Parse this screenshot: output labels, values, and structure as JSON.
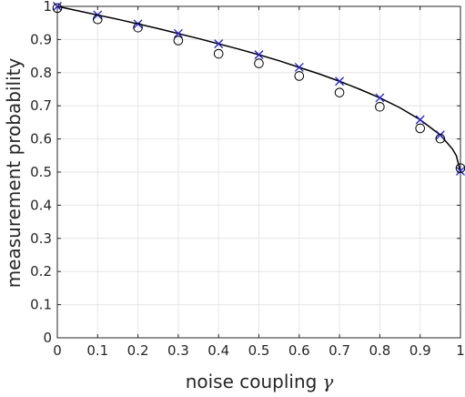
{
  "chart_data": {
    "type": "scatter",
    "xlabel": "noise coupling",
    "xlabel_symbol": "γ",
    "ylabel": "measurement probability",
    "xlim": [
      0,
      1
    ],
    "ylim": [
      0,
      1
    ],
    "grid": true,
    "x_ticks": [
      "0",
      "0.1",
      "0.2",
      "0.3",
      "0.4",
      "0.5",
      "0.6",
      "0.7",
      "0.8",
      "0.9",
      "1"
    ],
    "y_ticks": [
      "0",
      "0.1",
      "0.2",
      "0.3",
      "0.4",
      "0.5",
      "0.6",
      "0.7",
      "0.8",
      "0.9",
      "1"
    ],
    "series": [
      {
        "marker": "line",
        "color": "#000000",
        "x": [
          0,
          0.05,
          0.1,
          0.15,
          0.2,
          0.25,
          0.3,
          0.35,
          0.4,
          0.45,
          0.5,
          0.55,
          0.6,
          0.65,
          0.7,
          0.75,
          0.8,
          0.85,
          0.9,
          0.95,
          0.98,
          0.99,
          1.0
        ],
        "y": [
          1.0,
          0.987,
          0.974,
          0.961,
          0.947,
          0.933,
          0.918,
          0.903,
          0.887,
          0.871,
          0.854,
          0.836,
          0.816,
          0.796,
          0.774,
          0.75,
          0.724,
          0.694,
          0.658,
          0.612,
          0.57,
          0.549,
          0.5
        ]
      },
      {
        "marker": "x",
        "color": "#1f1fd4",
        "x": [
          0,
          0.1,
          0.2,
          0.3,
          0.4,
          0.5,
          0.6,
          0.7,
          0.8,
          0.9,
          0.95,
          1.0
        ],
        "y": [
          1.0,
          0.974,
          0.947,
          0.918,
          0.887,
          0.854,
          0.816,
          0.774,
          0.724,
          0.658,
          0.612,
          0.503
        ]
      },
      {
        "marker": "o",
        "color": "#000000",
        "x": [
          0,
          0.1,
          0.2,
          0.3,
          0.4,
          0.5,
          0.6,
          0.7,
          0.8,
          0.9,
          0.95,
          1.0
        ],
        "y": [
          0.995,
          0.961,
          0.936,
          0.897,
          0.857,
          0.828,
          0.79,
          0.74,
          0.697,
          0.632,
          0.601,
          0.512
        ]
      }
    ]
  }
}
